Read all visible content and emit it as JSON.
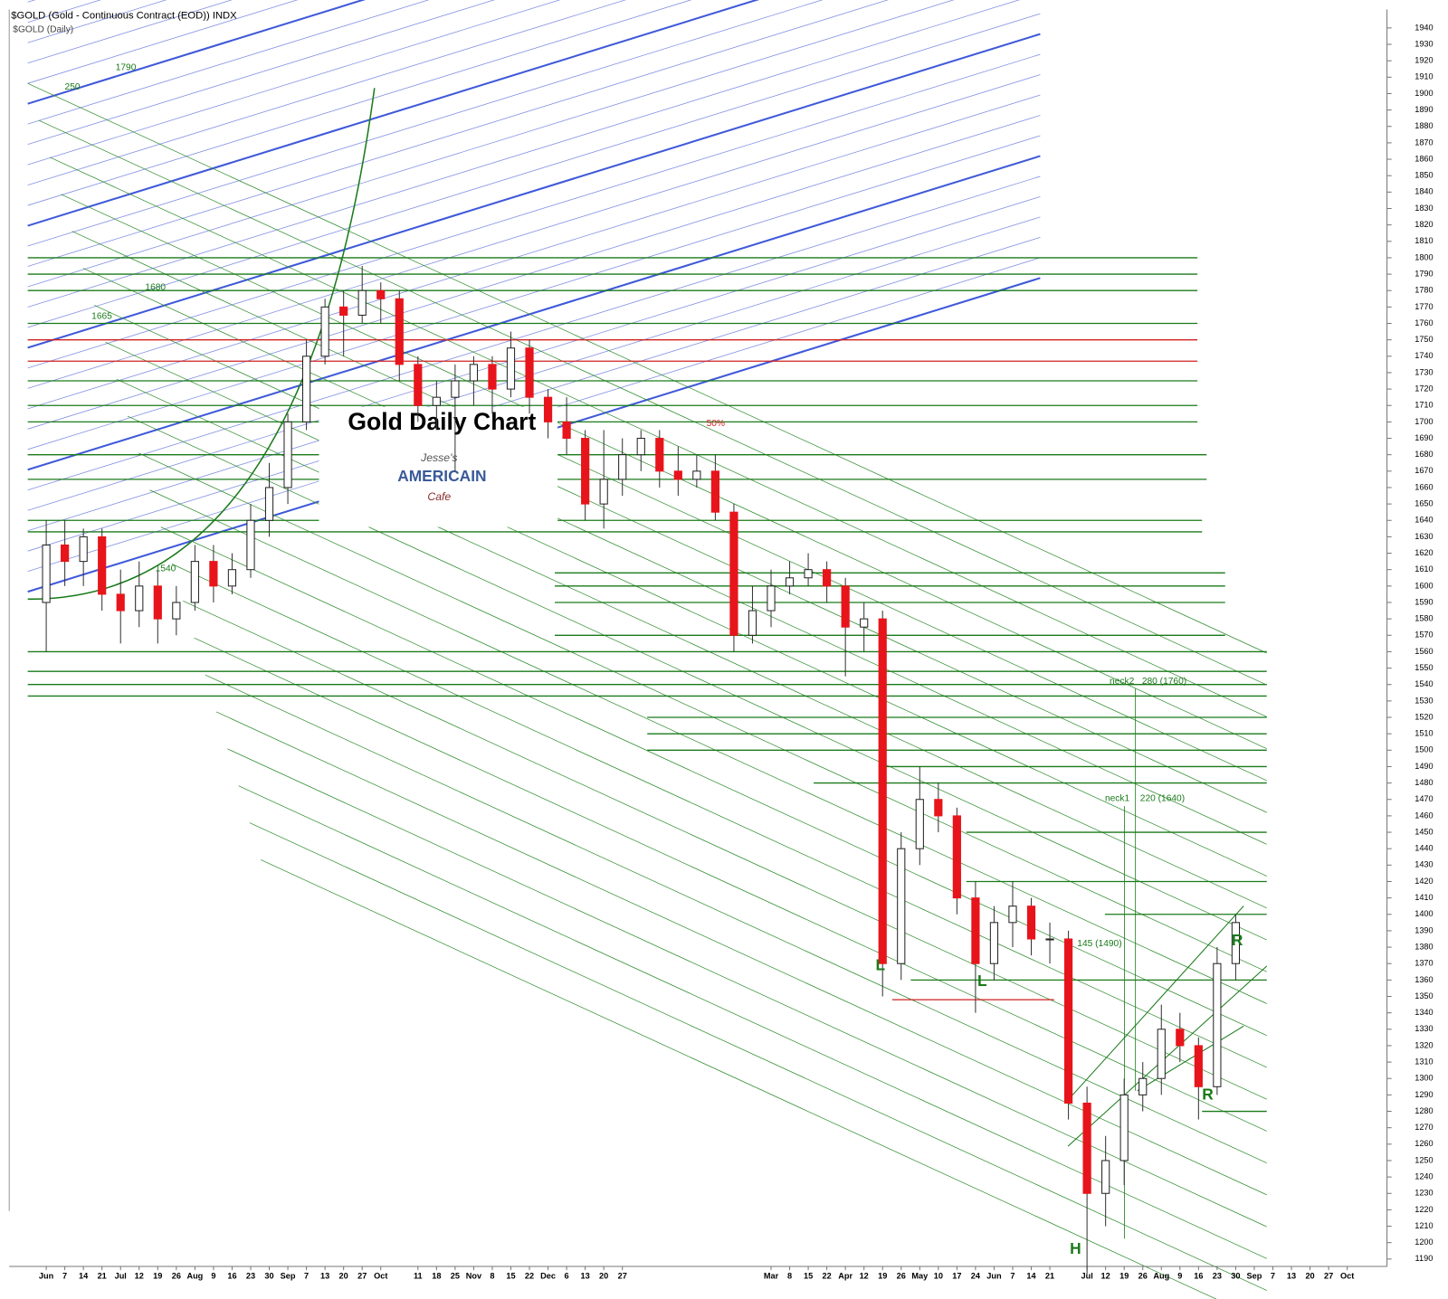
{
  "chart_data": {
    "type": "candlestick",
    "header": "$GOLD (Gold - Continuous Contract (EOD)) INDX",
    "subheader": "$GOLD (Daily)",
    "title": "Gold Daily Chart",
    "logo": [
      "Jesse's",
      "AMERICAIN",
      "Cafe"
    ],
    "up_color": "#ffffff",
    "down_color": "#e8141b",
    "categories": [
      "Jun",
      "7",
      "14",
      "21",
      "Jul",
      "12",
      "19",
      "26",
      "Aug",
      "9",
      "16",
      "23",
      "30",
      "Sep",
      "7",
      "13",
      "20",
      "27",
      "Oct",
      null,
      "11",
      "18",
      "25",
      "Nov",
      "8",
      "15",
      "22",
      "Dec",
      "6",
      "13",
      "20",
      "27",
      null,
      null,
      null,
      null,
      null,
      null,
      null,
      "Mar",
      "8",
      "15",
      "22",
      "Apr",
      "12",
      "19",
      "26",
      "May",
      "10",
      "17",
      "24",
      "Jun",
      "7",
      "14",
      "21",
      null,
      "Jul",
      "12",
      "19",
      "26",
      "Aug",
      "9",
      "16",
      "23",
      "30",
      "Sep",
      "7",
      "13",
      "20",
      "27",
      "Oct"
    ],
    "open": [
      1590,
      1625,
      1615,
      1630,
      1595,
      1585,
      1600,
      1580,
      1590,
      1615,
      1600,
      1610,
      1640,
      1660,
      1700,
      1740,
      1770,
      1765,
      1780,
      1775,
      1735,
      1710,
      1715,
      1725,
      1735,
      1720,
      1745,
      1715,
      1700,
      1690,
      1650,
      1665,
      1680,
      1690,
      1670,
      1665,
      1670,
      1645,
      1570,
      1585,
      1600,
      1605,
      1610,
      1600,
      1575,
      1580,
      1370,
      1440,
      1470,
      1460,
      1410,
      1370,
      1395,
      1405,
      1385,
      1385,
      1285,
      1230,
      1250,
      1290,
      1300,
      1330,
      1320,
      1295,
      1370,
      null,
      null,
      null,
      null,
      null,
      null
    ],
    "high": [
      1640,
      1640,
      1635,
      1635,
      1610,
      1615,
      1610,
      1600,
      1625,
      1625,
      1620,
      1650,
      1675,
      1705,
      1750,
      1775,
      1780,
      1795,
      1785,
      1780,
      1740,
      1725,
      1735,
      1740,
      1740,
      1755,
      1750,
      1720,
      1715,
      1695,
      1695,
      1690,
      1695,
      1695,
      1685,
      1680,
      1680,
      1650,
      1600,
      1610,
      1615,
      1620,
      1615,
      1605,
      1590,
      1585,
      1450,
      1490,
      1480,
      1465,
      1420,
      1405,
      1420,
      1410,
      1395,
      1390,
      1295,
      1265,
      1300,
      1310,
      1345,
      1340,
      1325,
      1380,
      1400,
      null,
      null,
      null,
      null,
      null,
      null
    ],
    "low": [
      1560,
      1600,
      1600,
      1585,
      1565,
      1575,
      1565,
      1570,
      1585,
      1590,
      1595,
      1605,
      1630,
      1650,
      1695,
      1735,
      1740,
      1760,
      1760,
      1725,
      1700,
      1695,
      1670,
      1710,
      1705,
      1715,
      1705,
      1690,
      1680,
      1640,
      1635,
      1655,
      1670,
      1660,
      1655,
      1660,
      1640,
      1560,
      1565,
      1575,
      1595,
      1600,
      1590,
      1545,
      1560,
      1350,
      1360,
      1430,
      1450,
      1400,
      1340,
      1360,
      1380,
      1375,
      1370,
      1275,
      1180,
      1210,
      1235,
      1280,
      1290,
      1310,
      1275,
      1290,
      1360,
      null,
      null,
      null,
      null,
      null,
      null
    ],
    "close": [
      1625,
      1615,
      1630,
      1595,
      1585,
      1600,
      1580,
      1590,
      1615,
      1600,
      1610,
      1640,
      1660,
      1700,
      1740,
      1770,
      1765,
      1780,
      1775,
      1735,
      1710,
      1715,
      1725,
      1735,
      1720,
      1745,
      1715,
      1700,
      1690,
      1650,
      1665,
      1680,
      1690,
      1670,
      1665,
      1670,
      1645,
      1570,
      1585,
      1600,
      1605,
      1610,
      1600,
      1575,
      1580,
      1370,
      1440,
      1470,
      1460,
      1410,
      1370,
      1395,
      1405,
      1385,
      1385,
      1285,
      1230,
      1250,
      1290,
      1300,
      1330,
      1320,
      1295,
      1370,
      1395,
      null,
      null,
      null,
      null,
      null,
      null
    ],
    "ylim": [
      1185,
      1945
    ],
    "yticks": [
      1190,
      1200,
      1210,
      1220,
      1230,
      1240,
      1250,
      1260,
      1270,
      1280,
      1290,
      1300,
      1310,
      1320,
      1330,
      1340,
      1350,
      1360,
      1370,
      1380,
      1390,
      1400,
      1410,
      1420,
      1430,
      1440,
      1450,
      1460,
      1470,
      1480,
      1490,
      1500,
      1510,
      1520,
      1530,
      1540,
      1550,
      1560,
      1570,
      1580,
      1590,
      1600,
      1610,
      1620,
      1630,
      1640,
      1650,
      1660,
      1670,
      1680,
      1690,
      1700,
      1710,
      1720,
      1730,
      1740,
      1750,
      1760,
      1770,
      1780,
      1790,
      1800,
      1810,
      1820,
      1830,
      1840,
      1850,
      1860,
      1870,
      1880,
      1890,
      1900,
      1910,
      1920,
      1930,
      1940
    ],
    "levels": [
      {
        "value": 1800,
        "color": "#1a7a1a"
      },
      {
        "value": 1790,
        "color": "#1a7a1a"
      },
      {
        "value": 1780,
        "color": "#1a7a1a"
      },
      {
        "value": 1760,
        "color": "#1a7a1a"
      },
      {
        "value": 1750,
        "color": "#d02020"
      },
      {
        "value": 1737,
        "color": "#d02020"
      },
      {
        "value": 1725,
        "color": "#1a7a1a"
      },
      {
        "value": 1710,
        "color": "#1a7a1a"
      },
      {
        "value": 1700,
        "color": "#1a7a1a"
      },
      {
        "value": 1680,
        "color": "#1a7a1a"
      },
      {
        "value": 1665,
        "color": "#1a7a1a"
      },
      {
        "value": 1640,
        "color": "#1a7a1a"
      },
      {
        "value": 1633,
        "color": "#1a7a1a"
      },
      {
        "value": 1608,
        "color": "#1a7a1a"
      },
      {
        "value": 1600,
        "color": "#1a7a1a"
      },
      {
        "value": 1590,
        "color": "#1a7a1a"
      },
      {
        "value": 1570,
        "color": "#1a7a1a"
      },
      {
        "value": 1560,
        "color": "#1a7a1a"
      },
      {
        "value": 1548,
        "color": "#1a7a1a"
      },
      {
        "value": 1540,
        "color": "#1a7a1a"
      },
      {
        "value": 1533,
        "color": "#1a7a1a"
      },
      {
        "value": 1520,
        "color": "#1a7a1a"
      },
      {
        "value": 1510,
        "color": "#1a7a1a"
      },
      {
        "value": 1500,
        "color": "#1a7a1a"
      },
      {
        "value": 1490,
        "color": "#1a7a1a"
      },
      {
        "value": 1480,
        "color": "#1a7a1a"
      },
      {
        "value": 1450,
        "color": "#1a7a1a"
      },
      {
        "value": 1420,
        "color": "#1a7a1a"
      },
      {
        "value": 1400,
        "color": "#1a7a1a"
      },
      {
        "value": 1360,
        "color": "#1a7a1a"
      },
      {
        "value": 1348,
        "color": "#d02020"
      },
      {
        "value": 1280,
        "color": "#1a7a1a"
      }
    ],
    "annotations": [
      {
        "text": "1790",
        "color": "#1a7a1a"
      },
      {
        "text": "250",
        "color": "#1a7a1a"
      },
      {
        "text": "1680",
        "color": "#1a7a1a"
      },
      {
        "text": "1665",
        "color": "#1a7a1a"
      },
      {
        "text": "1540",
        "color": "#1a7a1a"
      },
      {
        "text": "50%",
        "color": "#d02020"
      },
      {
        "text": "neck2",
        "color": "#1a7a1a"
      },
      {
        "text": "280 (1760)",
        "color": "#1a7a1a"
      },
      {
        "text": "neck1",
        "color": "#1a7a1a"
      },
      {
        "text": "220 (1640)",
        "color": "#1a7a1a"
      },
      {
        "text": "145 (1490)",
        "color": "#1a7a1a"
      },
      {
        "text": "L",
        "color": "#1a7a1a"
      },
      {
        "text": "L",
        "color": "#1a7a1a"
      },
      {
        "text": "H",
        "color": "#1a7a1a"
      },
      {
        "text": "R",
        "color": "#1a7a1a"
      },
      {
        "text": "R",
        "color": "#1a7a1a"
      }
    ]
  }
}
